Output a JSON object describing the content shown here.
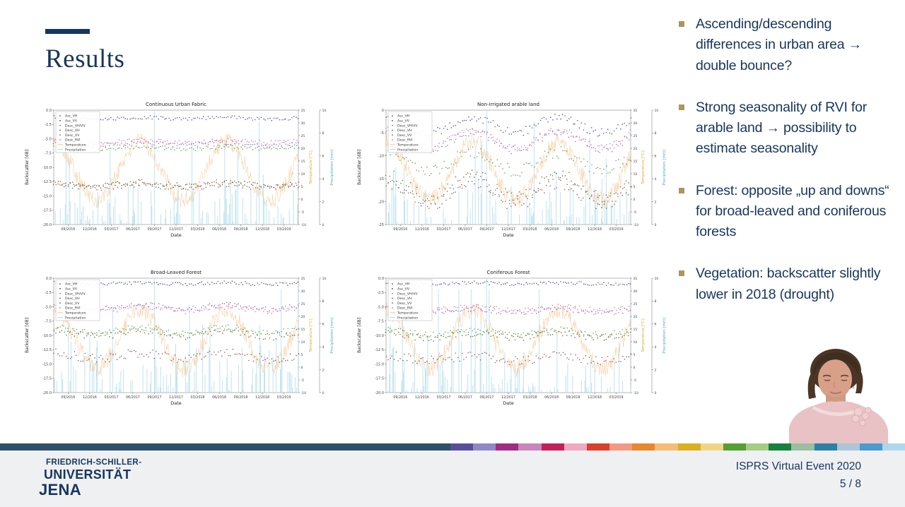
{
  "slide": {
    "title": "Results",
    "bullets": [
      "Ascending/descending differences in urban area → double bounce?",
      "Strong seasonality of RVI for arable land → possibility to estimate seasonality",
      "Forest: opposite „up and downs“ for broad-leaved and coniferous forests",
      "Vegetation: backscatter slightly lower in 2018 (drought)"
    ],
    "bullet_marker_color": "#ab965f",
    "text_color": "#17365d"
  },
  "chart_data": {
    "type": "scatter",
    "shared": {
      "xlabel": "Date",
      "ylabel": "Backscatter [dB]",
      "x_ticks": [
        "09/2016",
        "12/2016",
        "03/2017",
        "06/2017",
        "09/2017",
        "12/2017",
        "03/2018",
        "06/2018",
        "09/2018",
        "12/2018",
        "03/2019"
      ],
      "right_axis_temperature": {
        "label": "Temperature [°C]",
        "color": "#dfa93c",
        "ticks": [
          35,
          30,
          25,
          20,
          15,
          10,
          5,
          0,
          -5,
          -10
        ],
        "range": [
          -10,
          35
        ]
      },
      "right_axis_precipitation": {
        "label": "Precipitation [mm]",
        "color": "#56aacc",
        "ticks": [
          10,
          8,
          6,
          4,
          2,
          0
        ],
        "range": [
          0,
          10
        ]
      },
      "legend": [
        {
          "label": "Asc_VH",
          "color": "#5c5c1e",
          "type": "dot"
        },
        {
          "label": "Asc_VV",
          "color": "#3b3b9a",
          "type": "dot"
        },
        {
          "label": "Desc_VH/VV",
          "color": "#4a9a4a",
          "type": "dot"
        },
        {
          "label": "Desc_VH",
          "color": "#8a4242",
          "type": "dot"
        },
        {
          "label": "Desc_VV",
          "color": "#8a5fc2",
          "type": "dot"
        },
        {
          "label": "Desc_RVI",
          "color": "#d4699e",
          "type": "dot"
        },
        {
          "label": "Temperature",
          "color": "#f2c791",
          "type": "line"
        },
        {
          "label": "Precipitation",
          "color": "#a8d8ea",
          "type": "line"
        }
      ],
      "temperature_series": {
        "mean_c": 11,
        "seasonal_amplitude_c": 11.5,
        "noise_c": 3.5
      },
      "precipitation_series": {
        "max_mm": 10,
        "extreme_event": {
          "date": "09/2017",
          "mm": 10
        }
      }
    },
    "panels": [
      {
        "id": "chart-continuous-urban-fabric",
        "title": "Continuous Urban Fabric",
        "ylim": [
          -20,
          0
        ],
        "yticks": [
          "0.0",
          "-2.5",
          "-5.0",
          "-7.5",
          "-10.0",
          "-12.5",
          "-15.0",
          "-17.5",
          "-20.0"
        ],
        "seed": 101,
        "series": [
          {
            "name": "Asc_VH",
            "mean_db": -12.9,
            "seasonal_amplitude_db": 0.3,
            "noise_db": 0.5
          },
          {
            "name": "Asc_VV",
            "mean_db": -1.4,
            "seasonal_amplitude_db": 0.15,
            "noise_db": 0.3
          },
          {
            "name": "Desc_VH/VV",
            "mean_db": -6.6,
            "seasonal_amplitude_db": 0.2,
            "noise_db": 0.35
          },
          {
            "name": "Desc_VH",
            "mean_db": -13.3,
            "seasonal_amplitude_db": 0.3,
            "noise_db": 0.5
          },
          {
            "name": "Desc_VV",
            "mean_db": -5.9,
            "seasonal_amplitude_db": 0.2,
            "noise_db": 0.4
          },
          {
            "name": "Desc_RVI",
            "mean_db": -5.5,
            "seasonal_amplitude_db": 0.2,
            "noise_db": 0.4
          }
        ]
      },
      {
        "id": "chart-non-irrigated-arable-land",
        "title": "Non-irrigated arable land",
        "ylim": [
          -25,
          0
        ],
        "yticks": [
          "0",
          "-5",
          "-10",
          "-15",
          "-20",
          "-25"
        ],
        "seed": 202,
        "series": [
          {
            "name": "Asc_VH",
            "mean_db": -17.0,
            "seasonal_amplitude_db": 2.4,
            "noise_db": 1.7
          },
          {
            "name": "Asc_VV",
            "mean_db": -3.2,
            "seasonal_amplitude_db": 1.7,
            "noise_db": 0.9
          },
          {
            "name": "Desc_VH/VV",
            "mean_db": -11.2,
            "seasonal_amplitude_db": 2.0,
            "noise_db": 1.3
          },
          {
            "name": "Desc_VH",
            "mean_db": -17.9,
            "seasonal_amplitude_db": 2.4,
            "noise_db": 1.7
          },
          {
            "name": "Desc_VV",
            "mean_db": -6.6,
            "seasonal_amplitude_db": 2.0,
            "noise_db": 1.0
          },
          {
            "name": "Desc_RVI",
            "mean_db": -6.2,
            "seasonal_amplitude_db": 2.0,
            "noise_db": 0.9
          }
        ]
      },
      {
        "id": "chart-broad-leaved-forest",
        "title": "Broad-Leaved Forest",
        "ylim": [
          -20,
          0
        ],
        "yticks": [
          "0.0",
          "-2.5",
          "-5.0",
          "-7.5",
          "-10.0",
          "-12.5",
          "-15.0",
          "-17.5",
          "-20.0"
        ],
        "seed": 303,
        "series": [
          {
            "name": "Asc_VH",
            "mean_db": -9.7,
            "seasonal_amplitude_db": 0.5,
            "noise_db": 0.6
          },
          {
            "name": "Asc_VV",
            "mean_db": -0.9,
            "seasonal_amplitude_db": 0.15,
            "noise_db": 0.3
          },
          {
            "name": "Desc_VH/VV",
            "mean_db": -9.1,
            "seasonal_amplitude_db": 0.5,
            "noise_db": 0.5
          },
          {
            "name": "Desc_VH",
            "mean_db": -13.6,
            "seasonal_amplitude_db": 0.5,
            "noise_db": 0.8
          },
          {
            "name": "Desc_VV",
            "mean_db": -5.0,
            "seasonal_amplitude_db": 0.4,
            "noise_db": 0.45
          },
          {
            "name": "Desc_RVI",
            "mean_db": -5.4,
            "seasonal_amplitude_db": 0.4,
            "noise_db": 0.45
          }
        ]
      },
      {
        "id": "chart-coniferous-forest",
        "title": "Coniferous Forest",
        "ylim": [
          -20,
          0
        ],
        "yticks": [
          "0.0",
          "-2.5",
          "-5.0",
          "-7.5",
          "-10.0",
          "-12.5",
          "-15.0",
          "-17.5",
          "-20.0"
        ],
        "seed": 404,
        "series": [
          {
            "name": "Asc_VH",
            "mean_db": -10.0,
            "seasonal_amplitude_db": 0.4,
            "noise_db": 0.6
          },
          {
            "name": "Asc_VV",
            "mean_db": -0.9,
            "seasonal_amplitude_db": 0.15,
            "noise_db": 0.3
          },
          {
            "name": "Desc_VH/VV",
            "mean_db": -9.4,
            "seasonal_amplitude_db": 0.4,
            "noise_db": 0.5
          },
          {
            "name": "Desc_VH",
            "mean_db": -14.0,
            "seasonal_amplitude_db": 0.4,
            "noise_db": 0.8
          },
          {
            "name": "Desc_VV",
            "mean_db": -5.7,
            "seasonal_amplitude_db": 0.3,
            "noise_db": 0.45
          },
          {
            "name": "Desc_RVI",
            "mean_db": -5.3,
            "seasonal_amplitude_db": 0.3,
            "noise_db": 0.45
          }
        ]
      }
    ]
  },
  "footer": {
    "divider_color": "#2f4f6b",
    "background": "#eef0f2",
    "stripe_colors": [
      "#5a4e9b",
      "#9189c5",
      "#a02c83",
      "#c887bb",
      "#c32057",
      "#f2a9c0",
      "#d8402c",
      "#f49a82",
      "#e8872b",
      "#f6bc77",
      "#dcaf1e",
      "#f2d584",
      "#55a032",
      "#a5cc85",
      "#15823f",
      "#98bfa0",
      "#2a80a8",
      "#abc6d8",
      "#4b9ad0",
      "#b0d6ec"
    ],
    "logo_lines": [
      "FRIEDRICH-SCHILLER-",
      "UNIVERSITÄT",
      "JENA"
    ],
    "event": "ISPRS Virtual Event 2020",
    "page": "5 / 8"
  },
  "presenter": {
    "note": "speaker webcam cut-out, dark hair pulled back, pink top"
  }
}
